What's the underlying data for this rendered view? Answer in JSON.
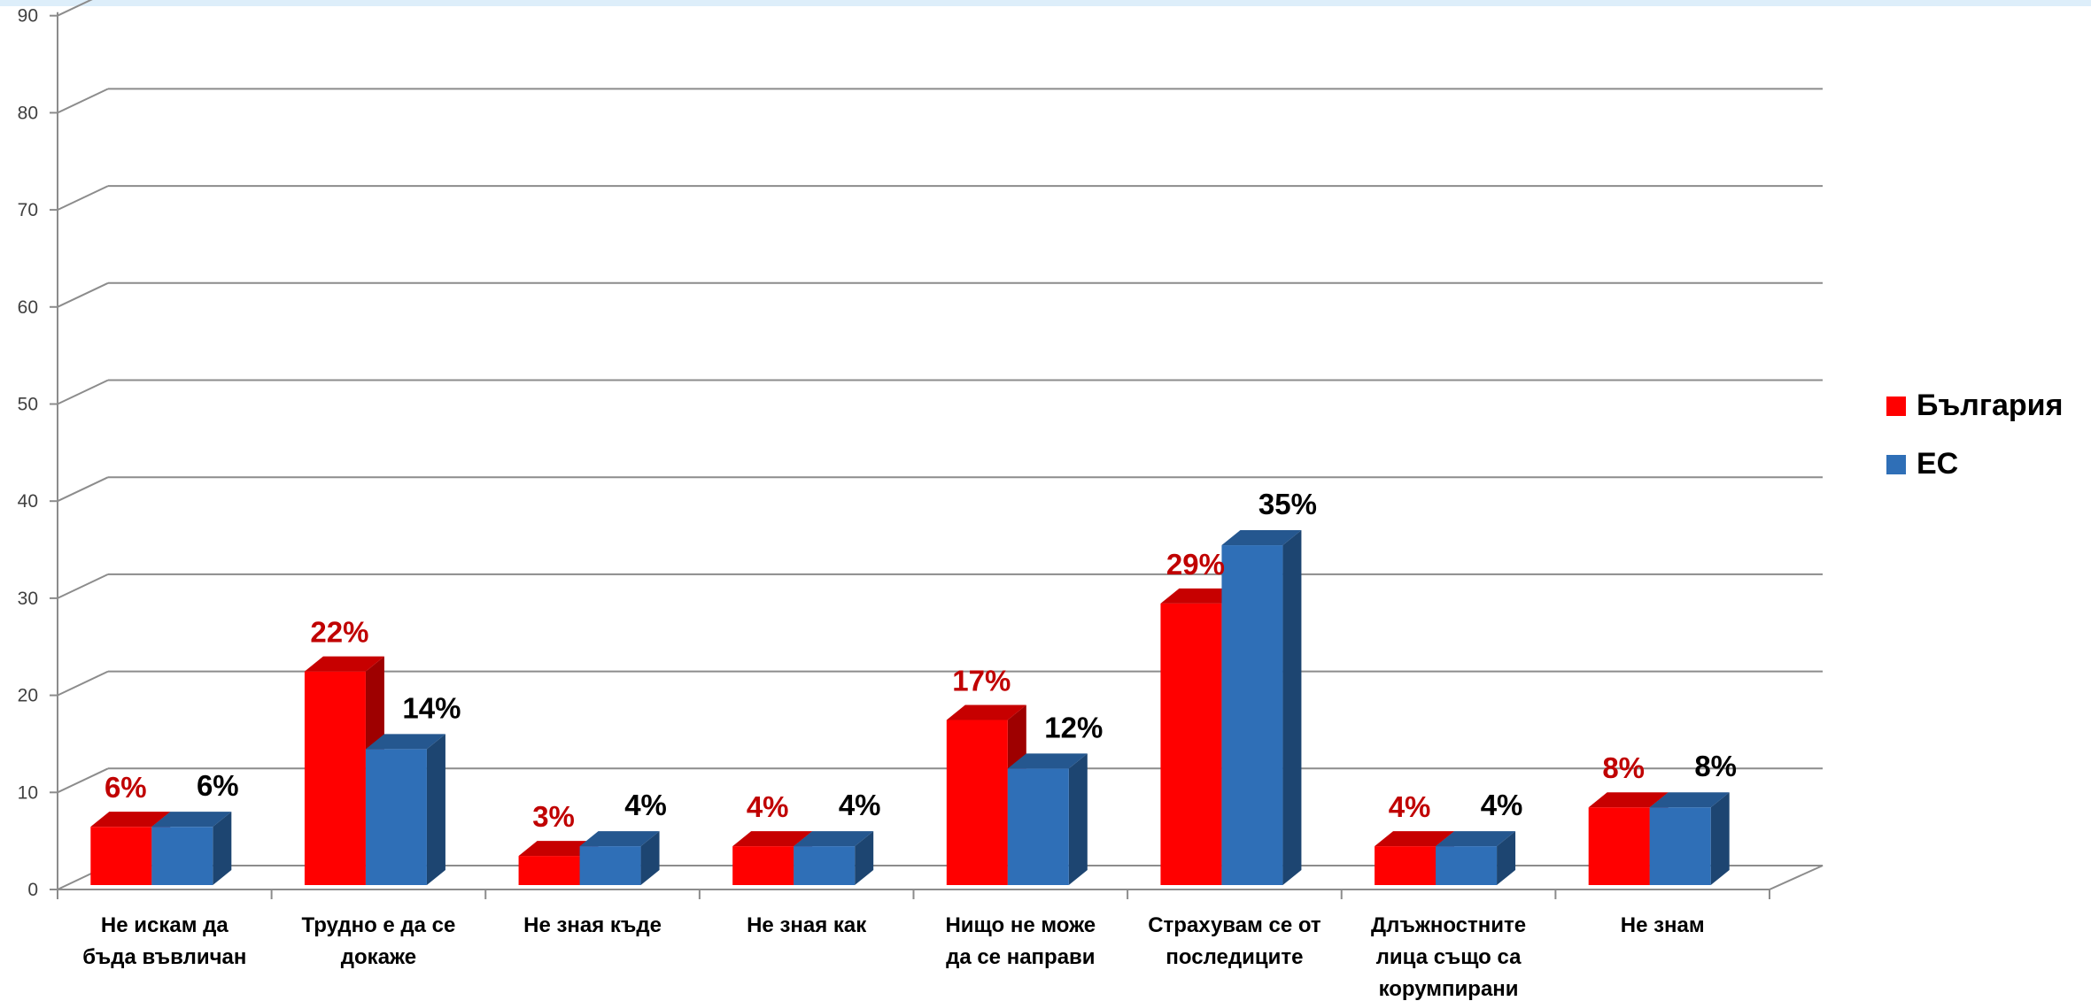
{
  "chart_data": {
    "type": "bar",
    "categories": [
      [
        "Не искам да",
        "бъда въвличан"
      ],
      [
        "Трудно е да се",
        "докаже"
      ],
      [
        "Не зная къде"
      ],
      [
        "Не зная как"
      ],
      [
        "Нищо не може",
        "да се направи"
      ],
      [
        "Страхувам се от",
        "последиците"
      ],
      [
        "Длъжностните",
        "лица също са",
        "корумпирани"
      ],
      [
        "Не знам"
      ]
    ],
    "series": [
      {
        "name": "България",
        "values": [
          6,
          22,
          3,
          4,
          17,
          29,
          4,
          8
        ],
        "labels": [
          "6%",
          "22%",
          "3%",
          "4%",
          "17%",
          "29%",
          "4%",
          "8%"
        ],
        "color": "#ff0000",
        "label_color": "#c00000"
      },
      {
        "name": "ЕС",
        "values": [
          6,
          14,
          4,
          4,
          12,
          35,
          4,
          8
        ],
        "labels": [
          "6%",
          "14%",
          "4%",
          "4%",
          "12%",
          "35%",
          "4%",
          "8%"
        ],
        "color": "#2f6fb7",
        "label_color": "#000000"
      }
    ],
    "y_ticks": [
      "0",
      "10",
      "20",
      "30",
      "40",
      "50",
      "60",
      "70",
      "80",
      "90"
    ],
    "ylim": [
      0,
      90
    ],
    "grid": true,
    "legend_position": "right",
    "style": "3d-clustered-column",
    "title": "",
    "xlabel": "",
    "ylabel": ""
  }
}
